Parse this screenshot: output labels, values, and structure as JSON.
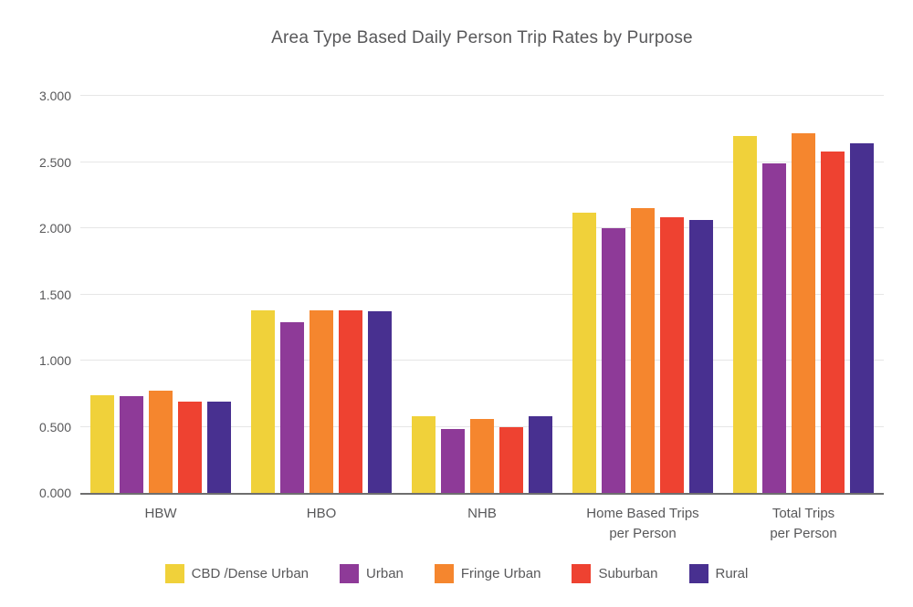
{
  "chart_data": {
    "type": "bar",
    "title": "Area Type Based Daily Person Trip Rates by Purpose",
    "categories": [
      "HBW",
      "HBO",
      "NHB",
      "Home Based Trips\nper Person",
      "Total Trips\nper Person"
    ],
    "series": [
      {
        "name": "CBD /Dense Urban",
        "color": "#F0D13A",
        "values": [
          0.74,
          1.38,
          0.58,
          2.12,
          2.7
        ]
      },
      {
        "name": "Urban",
        "color": "#8E3A98",
        "values": [
          0.73,
          1.29,
          0.48,
          2.0,
          2.49
        ]
      },
      {
        "name": "Fringe Urban",
        "color": "#F5862E",
        "values": [
          0.77,
          1.38,
          0.56,
          2.15,
          2.72
        ]
      },
      {
        "name": "Suburban",
        "color": "#EE4231",
        "values": [
          0.69,
          1.38,
          0.5,
          2.08,
          2.58
        ]
      },
      {
        "name": "Rural",
        "color": "#483090",
        "values": [
          0.69,
          1.37,
          0.58,
          2.06,
          2.64
        ]
      }
    ],
    "y_axis": {
      "min": 0,
      "max": 3,
      "tick_step": 0.5,
      "tick_labels": [
        "0.000",
        "0.500",
        "1.000",
        "1.500",
        "2.000",
        "2.500",
        "3.000"
      ]
    },
    "xlabel": "",
    "ylabel": "",
    "grid": true,
    "legend_position": "bottom",
    "colors": {
      "title_text": "#58585A",
      "axis_text": "#58585A",
      "gridline": "#E6E6E6",
      "axis_line": "#6E6E6E",
      "background": "#FFFFFF"
    }
  }
}
